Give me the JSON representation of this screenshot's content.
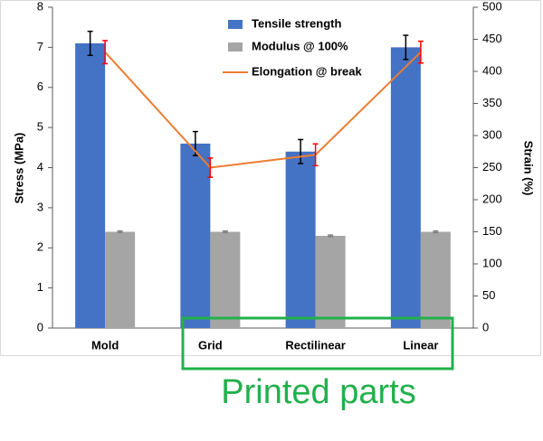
{
  "chart_data": {
    "type": "bar",
    "categories": [
      "Mold",
      "Grid",
      "Rectilinear",
      "Linear"
    ],
    "series": [
      {
        "name": "Tensile strength",
        "type": "bar",
        "color": "#4472c4",
        "values": [
          7.1,
          4.6,
          4.4,
          7.0
        ],
        "errors": [
          0.3,
          0.3,
          0.3,
          0.3
        ],
        "error_color": "#000000"
      },
      {
        "name": "Modulus @ 100%",
        "type": "bar",
        "color": "#a5a5a5",
        "values": [
          2.4,
          2.4,
          2.3,
          2.4
        ],
        "errors": [
          0.02,
          0.02,
          0.02,
          0.02
        ],
        "error_color": "#7f7f7f"
      },
      {
        "name": "Elongation @ break",
        "type": "line",
        "axis": "y2",
        "color": "#ed7d31",
        "values": [
          430,
          250,
          270,
          430
        ],
        "errors": [
          18,
          15,
          17,
          17
        ],
        "error_color": "#ff0000"
      }
    ],
    "ylabel": "Stress (MPa)",
    "y2label": "Strain (%)",
    "ylim": [
      0,
      8
    ],
    "yticks": [
      0,
      1,
      2,
      3,
      4,
      5,
      6,
      7,
      8
    ],
    "y2lim": [
      0,
      500
    ],
    "y2ticks": [
      0,
      50,
      100,
      150,
      200,
      250,
      300,
      350,
      400,
      450,
      500
    ],
    "grid": false,
    "legend": "top",
    "annotation": "Printed parts",
    "annotation_color": "#22b04c"
  }
}
